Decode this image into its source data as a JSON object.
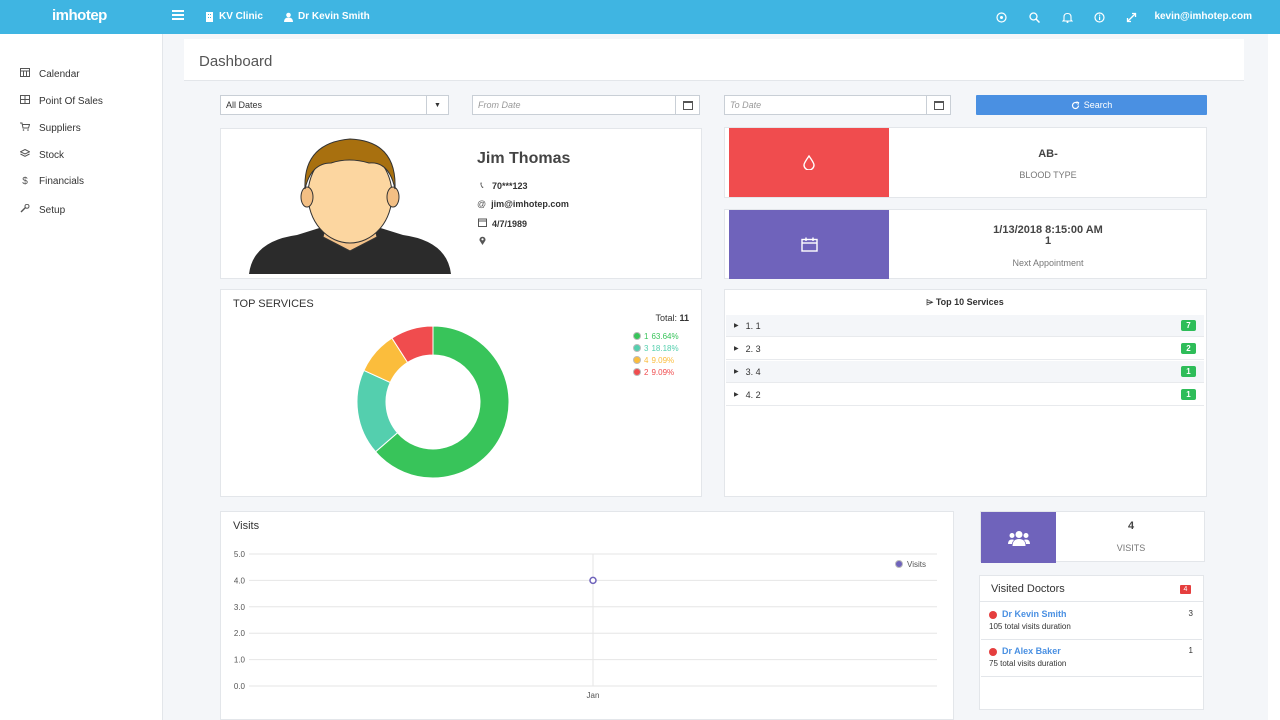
{
  "colors": {
    "topbar": "#3fb5e2",
    "blood_tile": "#f04c4e",
    "appt_tile": "#6f63bb",
    "green_badge": "#2ebd59",
    "search_btn": "#4a90e2",
    "doctor_dot": "#e53e3e"
  },
  "topbar": {
    "logo": "imhotep",
    "clinic": "KV Clinic",
    "doctor": "Dr Kevin Smith",
    "user_email": "kevin@imhotep.com",
    "icons": [
      "target-icon",
      "search-icon",
      "bell-icon",
      "info-icon",
      "expand-icon"
    ]
  },
  "sidebar": {
    "items": [
      {
        "label": "Calendar",
        "icon": "calendar-icon"
      },
      {
        "label": "Point Of Sales",
        "icon": "grid-icon"
      },
      {
        "label": "Suppliers",
        "icon": "cart-icon"
      },
      {
        "label": "Stock",
        "icon": "layers-icon"
      },
      {
        "label": "Financials",
        "icon": "dollar-icon"
      },
      {
        "label": "Setup",
        "icon": "wrench-icon"
      }
    ]
  },
  "page": {
    "title": "Dashboard"
  },
  "filters": {
    "date_select": "All Dates",
    "from_placeholder": "From Date",
    "to_placeholder": "To Date",
    "search_label": "Search"
  },
  "patient": {
    "name": "Jim Thomas",
    "phone": "70***123",
    "email": "jim@imhotep.com",
    "dob": "4/7/1989",
    "location": ""
  },
  "blood": {
    "value": "AB-",
    "label": "BLOOD TYPE"
  },
  "appointment": {
    "value": "1/13/2018 8:15:00 AM",
    "value2": "1",
    "label": "Next Appointment"
  },
  "top_services": {
    "title": "TOP SERVICES",
    "total_label": "Total:",
    "total_value": "11",
    "legend": [
      {
        "name": "1",
        "pct": "63.64%",
        "color": "#38c45a"
      },
      {
        "name": "3",
        "pct": "18.18%",
        "color": "#54cfae"
      },
      {
        "name": "4",
        "pct": "9.09%",
        "color": "#fbbd3c"
      },
      {
        "name": "2",
        "pct": "9.09%",
        "color": "#f04c4e"
      }
    ]
  },
  "top10": {
    "title": "Top 10 Services",
    "rows": [
      {
        "label": "1. 1",
        "count": "7"
      },
      {
        "label": "2. 3",
        "count": "2"
      },
      {
        "label": "3. 4",
        "count": "1"
      },
      {
        "label": "4. 2",
        "count": "1"
      }
    ]
  },
  "chart_data": {
    "type": "line",
    "title": "Visits",
    "x": [
      "Jan"
    ],
    "series": [
      {
        "name": "Visits",
        "values": [
          4
        ],
        "color": "#6f63bb"
      }
    ],
    "ylim": [
      0,
      5
    ],
    "yticks": [
      "0.0",
      "1.0",
      "2.0",
      "3.0",
      "4.0",
      "5.0"
    ],
    "grid": true,
    "legend": "top-right"
  },
  "visits_tile": {
    "value": "4",
    "label": "VISITS"
  },
  "visited_doctors": {
    "title": "Visited Doctors",
    "count": "4",
    "rows": [
      {
        "name": "Dr Kevin Smith",
        "sub": "105 total visits duration",
        "num": "3"
      },
      {
        "name": "Dr Alex Baker",
        "sub": "75 total visits duration",
        "num": "1"
      }
    ]
  }
}
